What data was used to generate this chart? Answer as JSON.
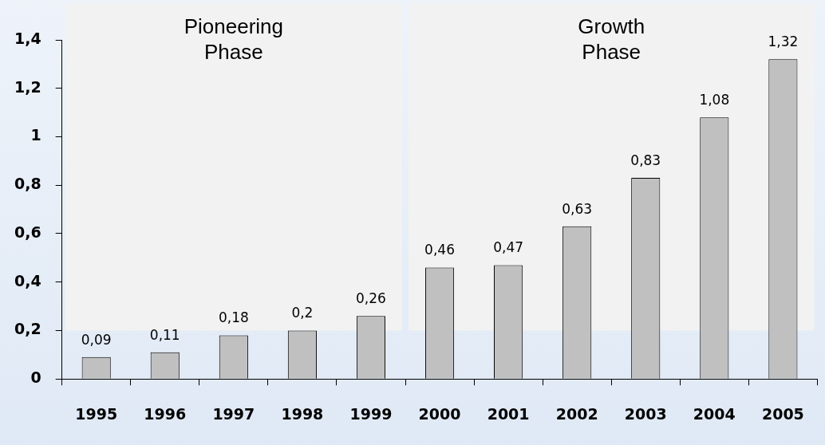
{
  "chart_data": {
    "type": "bar",
    "categories": [
      "1995",
      "1996",
      "1997",
      "1998",
      "1999",
      "2000",
      "2001",
      "2002",
      "2003",
      "2004",
      "2005"
    ],
    "values": [
      0.09,
      0.11,
      0.18,
      0.2,
      0.26,
      0.46,
      0.47,
      0.63,
      0.83,
      1.08,
      1.32
    ],
    "value_labels": [
      "0,09",
      "0,11",
      "0,18",
      "0,2",
      "0,26",
      "0,46",
      "0,47",
      "0,63",
      "0,83",
      "1,08",
      "1,32"
    ],
    "color": "#c0c0c0",
    "ylim": [
      0,
      1.4
    ],
    "yticks": [
      0,
      {
        "value": 0.2,
        "label": "0,2"
      },
      {
        "value": 0.4,
        "label": "0,4"
      },
      {
        "value": 0.6,
        "label": "0,6"
      },
      {
        "value": 0.8,
        "label": "0,8"
      },
      1,
      {
        "value": 1.2,
        "label": "1,2"
      },
      {
        "value": 1.4,
        "label": "1,4"
      }
    ],
    "bands": [
      {
        "axis": "x",
        "from": "1995",
        "to": "1999",
        "label": "Pioneering Phase",
        "color": "#f2f2f2"
      },
      {
        "axis": "x",
        "from": "2000",
        "to": "2005",
        "label": "Growth Phase",
        "color": "#f2f2f2"
      }
    ],
    "grid": false,
    "legend": false
  }
}
